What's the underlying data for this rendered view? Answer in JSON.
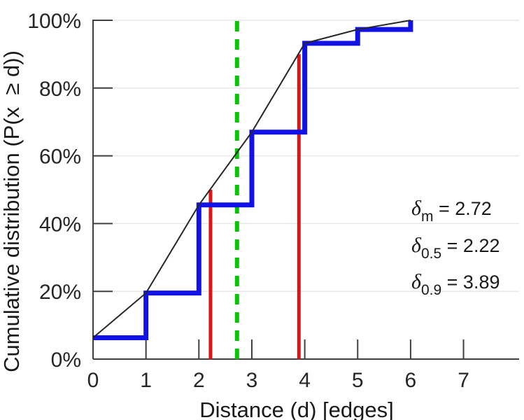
{
  "chart_data": {
    "type": "line",
    "subtype": "cumulative-distribution-step-with-fit",
    "title": "",
    "xlabel": "Distance (d) [edges]",
    "ylabel": "Cumulative distribution (P(x  ≥ d))",
    "xlim": [
      0,
      8.05
    ],
    "ylim": [
      0,
      100
    ],
    "grid": "horizontal-only",
    "legend": "none",
    "xticks": [
      {
        "value": 0,
        "label": "0"
      },
      {
        "value": 1,
        "label": "1"
      },
      {
        "value": 2,
        "label": "2"
      },
      {
        "value": 3,
        "label": "3"
      },
      {
        "value": 4,
        "label": "4"
      },
      {
        "value": 5,
        "label": "5"
      },
      {
        "value": 6,
        "label": "6"
      },
      {
        "value": 7,
        "label": "7"
      }
    ],
    "yticks": [
      {
        "value": 0,
        "label": "0%"
      },
      {
        "value": 20,
        "label": "20%"
      },
      {
        "value": 40,
        "label": "40%"
      },
      {
        "value": 60,
        "label": "60%"
      },
      {
        "value": 80,
        "label": "80%"
      },
      {
        "value": 100,
        "label": "100%"
      }
    ],
    "series": [
      {
        "name": "empirical-cdf-step",
        "style": "step-post",
        "color": "#1212e6",
        "width": 7,
        "x": [
          0,
          1,
          2,
          3,
          4,
          5,
          6
        ],
        "y": [
          6.3,
          19.5,
          45.5,
          67,
          93.2,
          97.3,
          100
        ]
      },
      {
        "name": "fit-line",
        "style": "polyline",
        "color": "#262626",
        "width": 2,
        "x": [
          0,
          1,
          2,
          3,
          4,
          5,
          6
        ],
        "y": [
          6.3,
          19.5,
          45.5,
          67,
          93.2,
          97.3,
          100
        ]
      }
    ],
    "vlines": [
      {
        "name": "delta-0.5-marker",
        "x": 2.22,
        "y_from": 0,
        "y_to": 50,
        "color": "#dc1414",
        "width": 5,
        "style": "solid"
      },
      {
        "name": "delta-0.9-marker",
        "x": 3.89,
        "y_from": 0,
        "y_to": 90,
        "color": "#dc1414",
        "width": 5,
        "style": "solid"
      },
      {
        "name": "delta-mean-marker",
        "x": 2.72,
        "y_from": 0,
        "y_to": 100,
        "color": "#07c407",
        "width": 6,
        "style": "dashed"
      }
    ],
    "annotations": [
      {
        "symbol": "δ",
        "subscript": "m",
        "text": " = 2.72"
      },
      {
        "symbol": "δ",
        "subscript": "0.5",
        "text": " = 2.22"
      },
      {
        "symbol": "δ",
        "subscript": "0.9",
        "text": " = 3.89"
      }
    ]
  },
  "colors": {
    "background": "#ffffff",
    "axis": "#3f3f3f",
    "grid": "#e7e7e7",
    "step_blue": "#1212e6",
    "marker_red": "#dc1414",
    "mean_green": "#07c407",
    "fit_black": "#262626",
    "text": "#1a1a1a"
  }
}
